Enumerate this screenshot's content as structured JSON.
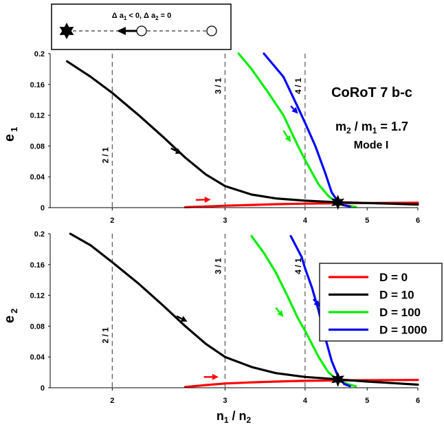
{
  "inset": {
    "label_parts": [
      "Δ a",
      "1",
      " < 0, Δ a",
      "2",
      " = 0"
    ]
  },
  "annotations": {
    "system": "CoRoT 7 b-c",
    "mass_ratio_parts": [
      "m",
      "2",
      " / m",
      "1",
      " = 1.7"
    ],
    "mode": "Mode I"
  },
  "chart_data": [
    {
      "type": "line",
      "panel": "top",
      "ylabel_parts": [
        "e",
        "1"
      ],
      "xlim": [
        1.6,
        6
      ],
      "ylim": [
        0,
        0.2
      ],
      "x_scale": "log",
      "grid": false,
      "x_ticks": [
        2,
        3,
        4,
        5,
        6
      ],
      "y_ticks": [
        0,
        0.04,
        0.08,
        0.12,
        0.16,
        0.2
      ],
      "y_tick_labels": [
        "0",
        "0.04",
        "0.08",
        "0.12",
        "0.16",
        "0.2"
      ],
      "resonances": [
        {
          "x": 2,
          "label": "2 / 1"
        },
        {
          "x": 3,
          "label": "3 / 1"
        },
        {
          "x": 4,
          "label": "4 / 1"
        }
      ],
      "series": [
        {
          "name": "D = 0",
          "color": "#ff0000",
          "points": [
            [
              2.6,
              0.0005
            ],
            [
              2.8,
              0.0015
            ],
            [
              3.0,
              0.0025
            ],
            [
              3.3,
              0.0035
            ],
            [
              3.6,
              0.0045
            ],
            [
              4.0,
              0.0052
            ],
            [
              4.5,
              0.0057
            ],
            [
              5.0,
              0.006
            ],
            [
              5.5,
              0.0062
            ],
            [
              6.0,
              0.0063
            ]
          ]
        },
        {
          "name": "D = 10",
          "color": "#000000",
          "points": [
            [
              1.7,
              0.19
            ],
            [
              1.85,
              0.17
            ],
            [
              2.0,
              0.149
            ],
            [
              2.2,
              0.12
            ],
            [
              2.4,
              0.092
            ],
            [
              2.6,
              0.065
            ],
            [
              2.8,
              0.043
            ],
            [
              3.0,
              0.028
            ],
            [
              3.3,
              0.017
            ],
            [
              3.6,
              0.012
            ],
            [
              4.0,
              0.009
            ],
            [
              4.5,
              0.007
            ],
            [
              5.0,
              0.006
            ],
            [
              5.5,
              0.005
            ],
            [
              6.0,
              0.004
            ]
          ]
        },
        {
          "name": "D = 100",
          "color": "#00ee00",
          "points": [
            [
              3.15,
              0.2
            ],
            [
              3.3,
              0.18
            ],
            [
              3.5,
              0.15
            ],
            [
              3.7,
              0.12
            ],
            [
              3.9,
              0.08
            ],
            [
              4.0,
              0.062
            ],
            [
              4.2,
              0.03
            ],
            [
              4.35,
              0.015
            ],
            [
              4.5,
              0.006
            ],
            [
              4.65,
              0.0025
            ],
            [
              4.8,
              0.001
            ]
          ]
        },
        {
          "name": "D = 1000",
          "color": "#0000ff",
          "points": [
            [
              3.45,
              0.2
            ],
            [
              3.7,
              0.17
            ],
            [
              3.9,
              0.13
            ],
            [
              4.0,
              0.11
            ],
            [
              4.15,
              0.08
            ],
            [
              4.3,
              0.045
            ],
            [
              4.4,
              0.02
            ],
            [
              4.5,
              0.008
            ],
            [
              4.6,
              0.003
            ],
            [
              4.7,
              0.0015
            ]
          ]
        }
      ],
      "arrows": [
        {
          "color": "#ff0000",
          "from": [
            2.7,
            0.01
          ],
          "to": [
            2.85,
            0.0105
          ]
        },
        {
          "color": "#000000",
          "from": [
            2.47,
            0.077
          ],
          "to": [
            2.57,
            0.07
          ]
        },
        {
          "color": "#00ee00",
          "from": [
            3.7,
            0.1
          ],
          "to": [
            3.8,
            0.085
          ]
        },
        {
          "color": "#0000ff",
          "from": [
            3.8,
            0.132
          ],
          "to": [
            3.9,
            0.122
          ]
        }
      ],
      "marker": {
        "x": 4.5,
        "y": 0.007
      }
    },
    {
      "type": "line",
      "panel": "bottom",
      "ylabel_parts": [
        "e",
        "2"
      ],
      "xlabel_parts": [
        "n",
        "1",
        " / n",
        "2"
      ],
      "xlim": [
        1.6,
        6
      ],
      "ylim": [
        0,
        0.2
      ],
      "x_scale": "log",
      "grid": false,
      "x_ticks": [
        2,
        3,
        4,
        5,
        6
      ],
      "y_ticks": [
        0,
        0.04,
        0.08,
        0.12,
        0.16,
        0.2
      ],
      "y_tick_labels": [
        "0",
        "0.04",
        "0.08",
        "0.12",
        "0.16",
        "0.2"
      ],
      "resonances": [
        {
          "x": 2,
          "label": "2 / 1"
        },
        {
          "x": 3,
          "label": "3 / 1"
        },
        {
          "x": 4,
          "label": "4 / 1"
        }
      ],
      "series": [
        {
          "name": "D = 0",
          "color": "#ff0000",
          "points": [
            [
              2.6,
              0.001
            ],
            [
              2.8,
              0.0035
            ],
            [
              3.0,
              0.0055
            ],
            [
              3.3,
              0.007
            ],
            [
              3.6,
              0.008
            ],
            [
              4.0,
              0.009
            ],
            [
              4.5,
              0.0095
            ],
            [
              5.0,
              0.0098
            ],
            [
              5.5,
              0.01
            ],
            [
              6.0,
              0.0102
            ]
          ]
        },
        {
          "name": "D = 10",
          "color": "#000000",
          "points": [
            [
              1.72,
              0.2
            ],
            [
              1.85,
              0.185
            ],
            [
              2.0,
              0.163
            ],
            [
              2.2,
              0.135
            ],
            [
              2.4,
              0.107
            ],
            [
              2.6,
              0.08
            ],
            [
              2.8,
              0.057
            ],
            [
              3.0,
              0.04
            ],
            [
              3.3,
              0.027
            ],
            [
              3.6,
              0.019
            ],
            [
              4.0,
              0.014
            ],
            [
              4.5,
              0.011
            ],
            [
              5.0,
              0.008
            ],
            [
              5.5,
              0.006
            ],
            [
              6.0,
              0.004
            ]
          ]
        },
        {
          "name": "D = 100",
          "color": "#00ee00",
          "points": [
            [
              3.3,
              0.197
            ],
            [
              3.45,
              0.175
            ],
            [
              3.6,
              0.15
            ],
            [
              3.75,
              0.12
            ],
            [
              3.9,
              0.09
            ],
            [
              4.0,
              0.074
            ],
            [
              4.2,
              0.04
            ],
            [
              4.35,
              0.02
            ],
            [
              4.5,
              0.01
            ],
            [
              4.65,
              0.005
            ],
            [
              4.8,
              0.002
            ]
          ]
        },
        {
          "name": "D = 1000",
          "color": "#0000ff",
          "points": [
            [
              3.8,
              0.197
            ],
            [
              3.95,
              0.17
            ],
            [
              4.0,
              0.155
            ],
            [
              4.1,
              0.13
            ],
            [
              4.2,
              0.1
            ],
            [
              4.3,
              0.065
            ],
            [
              4.4,
              0.035
            ],
            [
              4.5,
              0.015
            ],
            [
              4.6,
              0.005
            ],
            [
              4.7,
              0.002
            ]
          ]
        }
      ],
      "arrows": [
        {
          "color": "#ff0000",
          "from": [
            2.78,
            0.014
          ],
          "to": [
            2.93,
            0.014
          ]
        },
        {
          "color": "#000000",
          "from": [
            2.52,
            0.093
          ],
          "to": [
            2.62,
            0.086
          ]
        },
        {
          "color": "#00ee00",
          "from": [
            3.6,
            0.104
          ],
          "to": [
            3.7,
            0.092
          ]
        },
        {
          "color": "#0000ff",
          "from": [
            4.12,
            0.115
          ],
          "to": [
            4.22,
            0.105
          ]
        }
      ],
      "marker": {
        "x": 4.5,
        "y": 0.011
      },
      "legend": {
        "placement": "right",
        "entries": [
          {
            "label": "D = 0",
            "color": "#ff0000"
          },
          {
            "label": "D = 10",
            "color": "#000000"
          },
          {
            "label": "D = 100",
            "color": "#00ee00"
          },
          {
            "label": "D = 1000",
            "color": "#0000ff"
          }
        ]
      }
    }
  ]
}
